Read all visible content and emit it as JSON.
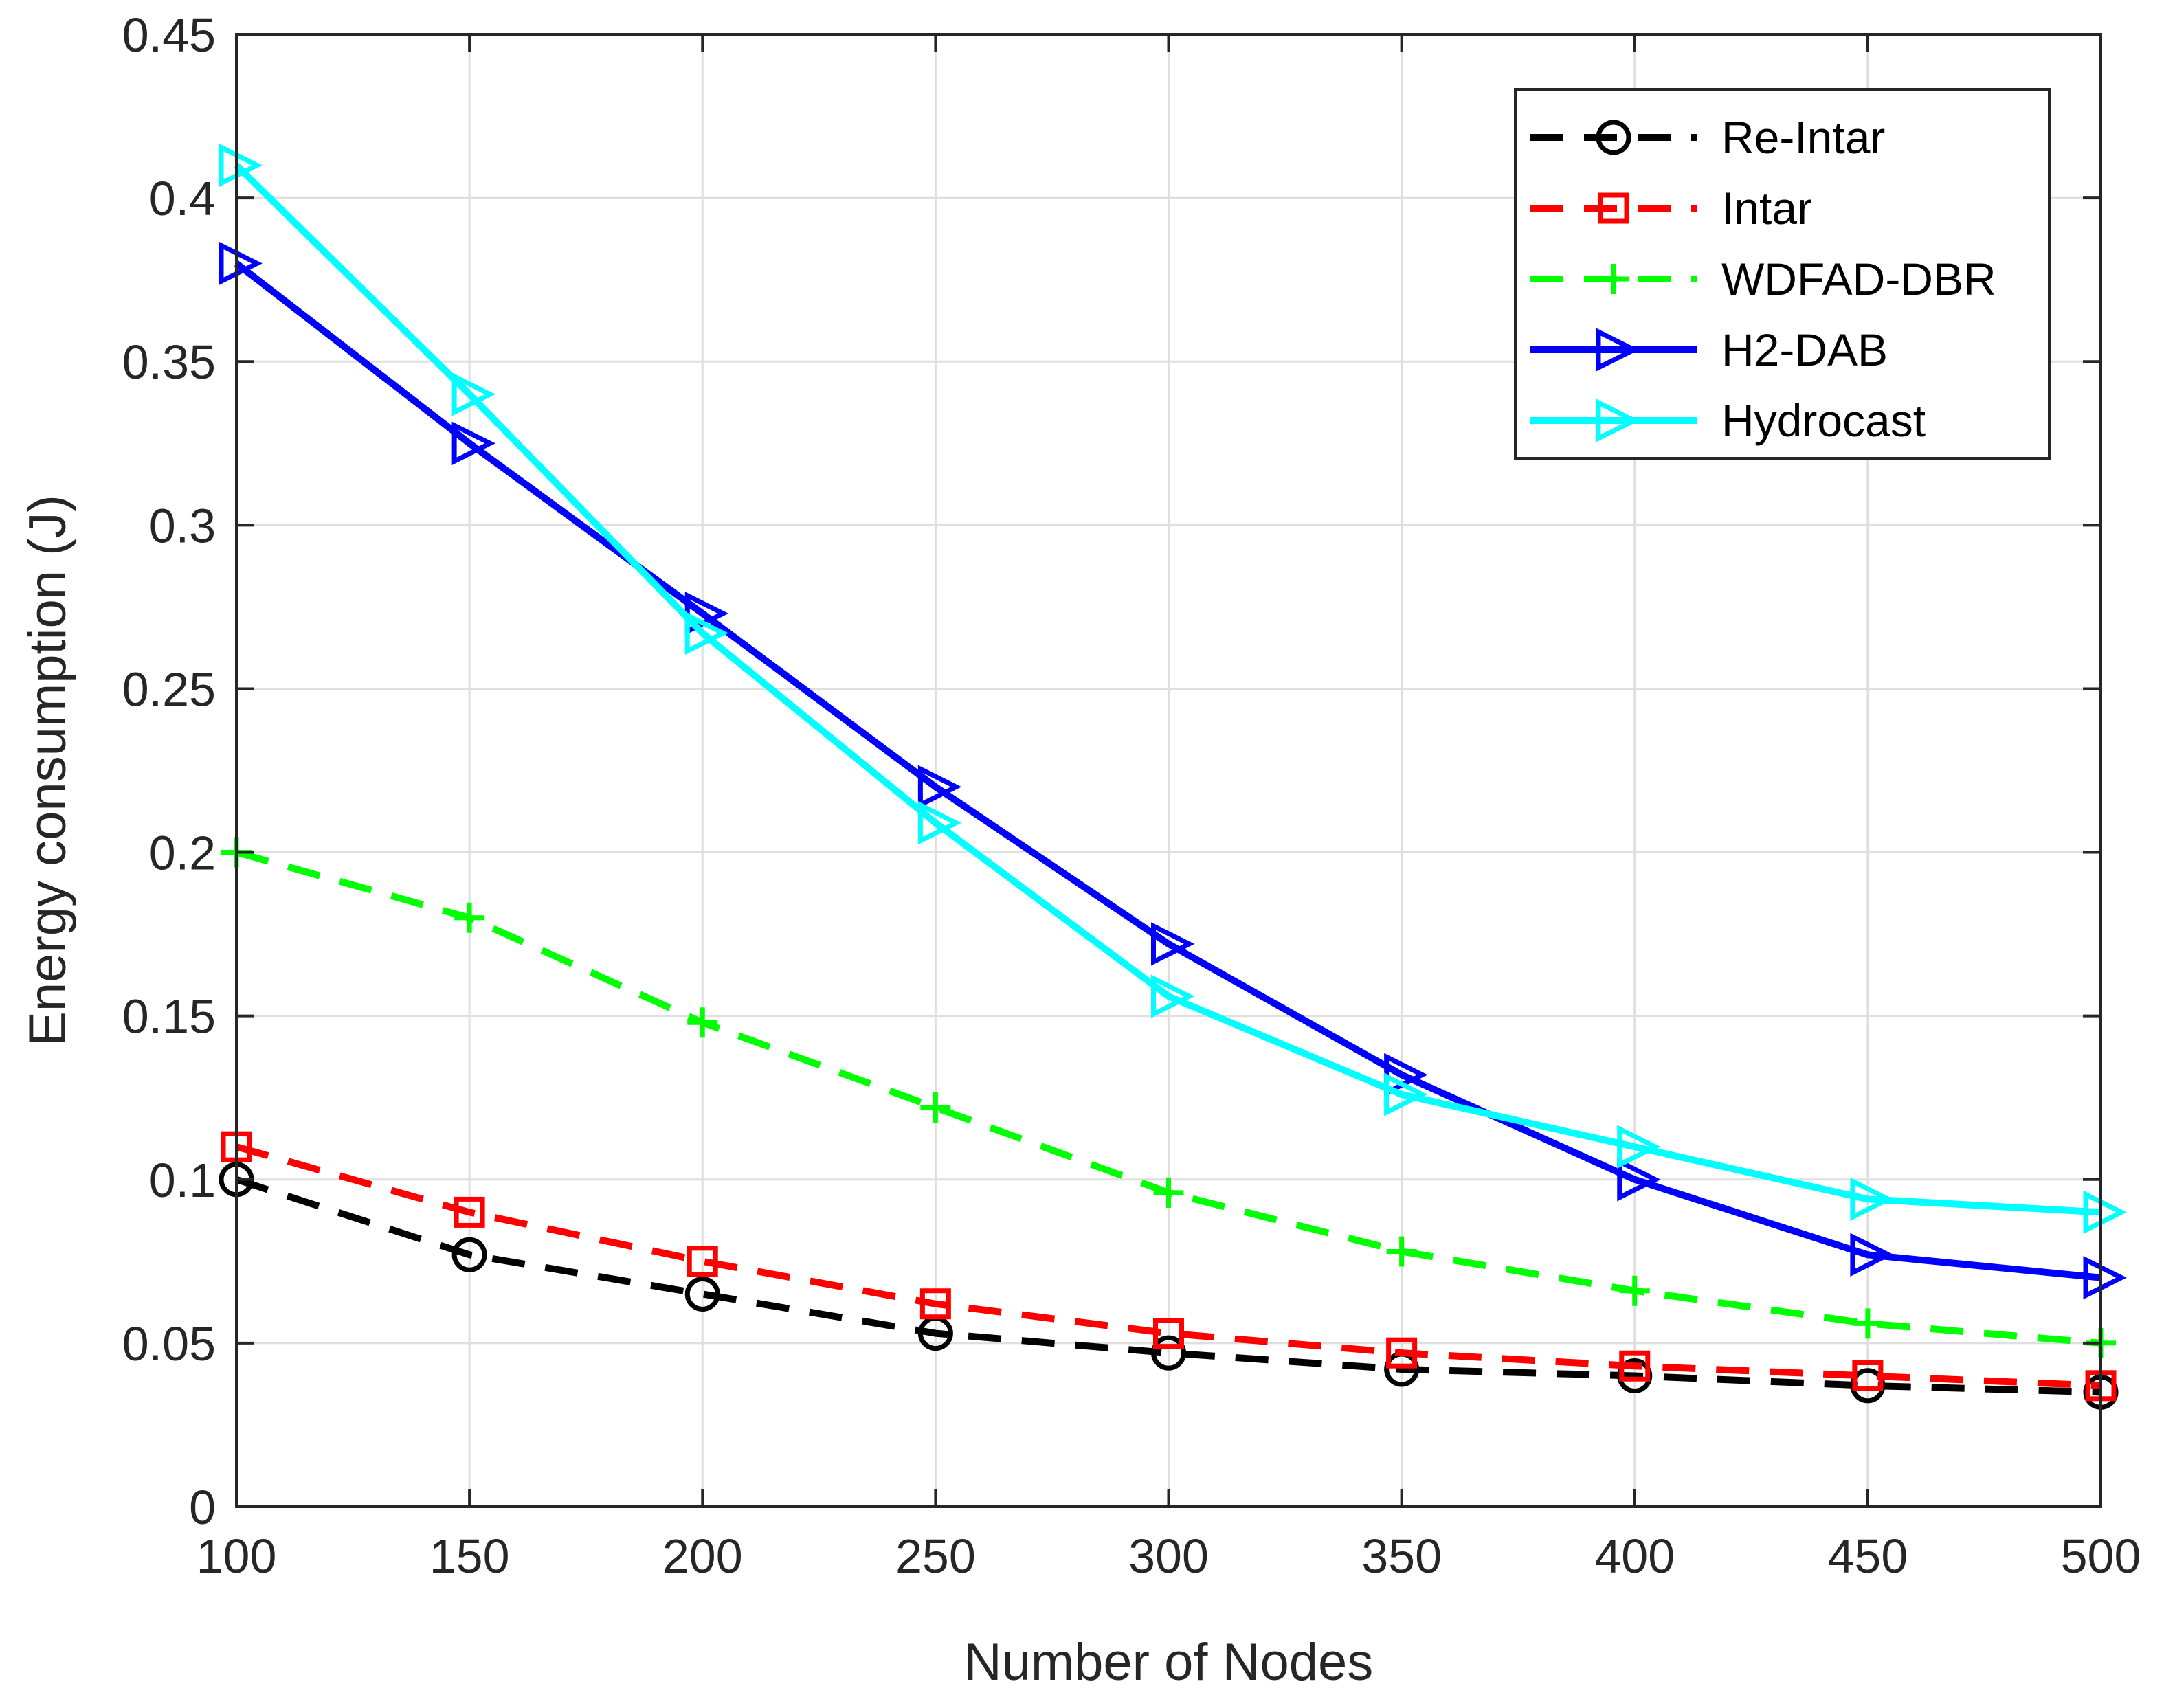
{
  "chart_data": {
    "type": "line",
    "title": "",
    "xlabel": "Number of Nodes",
    "ylabel": "Energy consumption (J)",
    "x": [
      100,
      150,
      200,
      250,
      300,
      350,
      400,
      450,
      500
    ],
    "xlim": [
      100,
      500
    ],
    "ylim": [
      0,
      0.45
    ],
    "xticks": [
      100,
      150,
      200,
      250,
      300,
      350,
      400,
      450,
      500
    ],
    "xtick_labels": [
      "100",
      "150",
      "200",
      "250",
      "300",
      "350",
      "400",
      "450",
      "500"
    ],
    "yticks": [
      0,
      0.05,
      0.1,
      0.15,
      0.2,
      0.25,
      0.3,
      0.35,
      0.4,
      0.45
    ],
    "ytick_labels": [
      "0",
      "0.05",
      "0.1",
      "0.15",
      "0.2",
      "0.25",
      "0.3",
      "0.35",
      "0.4",
      "0.45"
    ],
    "grid": true,
    "legend_position": "top-right",
    "series": [
      {
        "name": "Re-Intar",
        "color": "#000000",
        "line": "dashed",
        "marker": "circle",
        "values": [
          0.1,
          0.077,
          0.065,
          0.053,
          0.047,
          0.042,
          0.04,
          0.037,
          0.035
        ]
      },
      {
        "name": "Intar",
        "color": "#ff0000",
        "line": "dashed",
        "marker": "square",
        "values": [
          0.11,
          0.09,
          0.075,
          0.062,
          0.053,
          0.047,
          0.043,
          0.04,
          0.037
        ]
      },
      {
        "name": "WDFAD-DBR",
        "color": "#00ff00",
        "line": "dashed",
        "marker": "plus",
        "values": [
          0.2,
          0.18,
          0.148,
          0.122,
          0.096,
          0.078,
          0.066,
          0.056,
          0.05
        ]
      },
      {
        "name": "H2-DAB",
        "color": "#0000ff",
        "line": "solid",
        "marker": "triangle-right",
        "values": [
          0.38,
          0.325,
          0.273,
          0.22,
          0.172,
          0.132,
          0.1,
          0.077,
          0.07
        ]
      },
      {
        "name": "Hydrocast",
        "color": "#00ffff",
        "line": "solid",
        "marker": "triangle-right",
        "values": [
          0.41,
          0.34,
          0.267,
          0.209,
          0.156,
          0.126,
          0.11,
          0.094,
          0.09
        ]
      }
    ]
  }
}
